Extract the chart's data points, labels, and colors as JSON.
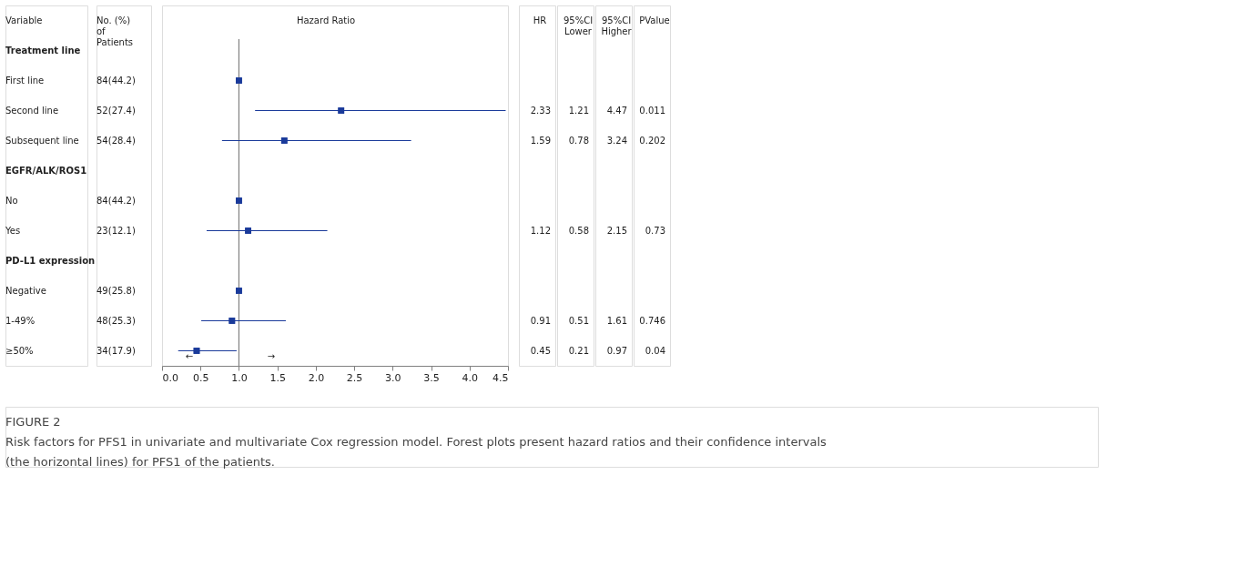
{
  "chart_data": {
    "type": "scatter",
    "orientation": "horizontal",
    "title": "FIGURE 2",
    "subtitle": "Risk factors for PFS1 in univariate and multivariate Cox regression model. Forest plots present hazard ratios and their confidence intervals (the horizontal lines) for PFS1 of the patients.",
    "xlabel": "Hazard Ratio",
    "categories": [
      "Treatment line",
      "First line",
      "Second line",
      "Subsequent line",
      "EGFR/ALK/ROS1",
      "No",
      "Yes",
      "PD-L1 expression",
      "Negative",
      "1-49%",
      "≥50%"
    ],
    "values": [
      null,
      1,
      2.33,
      1.59,
      null,
      1,
      1.12,
      null,
      1,
      0.91,
      0.45
    ],
    "errors": [
      null,
      null,
      [
        1.21,
        4.47
      ],
      [
        0.78,
        3.24
      ],
      null,
      null,
      [
        0.58,
        2.15
      ],
      null,
      null,
      [
        0.51,
        1.61
      ],
      [
        0.21,
        0.97
      ]
    ],
    "value_labels": [
      null,
      null,
      "2.33",
      "1.59",
      null,
      null,
      "1.12",
      null,
      null,
      "0.91",
      "0.45"
    ],
    "color": "#1a3a9a",
    "marker": "square",
    "xlim": [
      0,
      4.5
    ],
    "xticks": [
      {
        "value": 0,
        "label": "0.0"
      },
      {
        "value": 0.5,
        "label": "0.5"
      },
      {
        "value": 1,
        "label": "1.0"
      },
      {
        "value": 1.5,
        "label": "1.5"
      },
      {
        "value": 2,
        "label": "2.0"
      },
      {
        "value": 2.5,
        "label": "2.5"
      },
      {
        "value": 3,
        "label": "3.0"
      },
      {
        "value": 3.5,
        "label": "3.5"
      },
      {
        "value": 4,
        "label": "4.0"
      },
      {
        "value": 4.5,
        "label": "4.5"
      }
    ],
    "ref_lines": [
      {
        "axis": "x",
        "value": 1,
        "color": "#808080"
      }
    ],
    "grid": false,
    "legend": false,
    "annotations": [
      "Variable",
      "No. (%)\nof\nPatients",
      "HR",
      "95%CI\nLower",
      "95%CI\nHigher",
      "PValue",
      "84(44.2)",
      "52(27.4)",
      "54(28.4)",
      "84(44.2)",
      "23(12.1)",
      "49(25.8)",
      "48(25.3)",
      "34(17.9)",
      "1.21",
      "4.47",
      "0.011",
      "0.78",
      "3.24",
      "0.202",
      "0.58",
      "2.15",
      "0.73",
      "0.51",
      "1.61",
      "0.746",
      "0.21",
      "0.97",
      "0.04",
      "←",
      "→"
    ]
  }
}
